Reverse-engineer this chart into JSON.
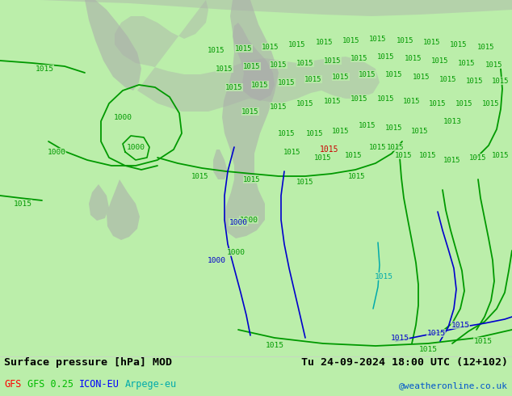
{
  "title_left": "Surface pressure [hPa] MOD",
  "title_right": "Tu 24-09-2024 18:00 UTC (12+102)",
  "legend_items": [
    {
      "label": "GFS",
      "color": "#ff0000"
    },
    {
      "label": "GFS 0.25",
      "color": "#00bb00"
    },
    {
      "label": "ICON-EU",
      "color": "#0000ff"
    },
    {
      "label": "Arpege-eu",
      "color": "#00aaaa"
    }
  ],
  "credit": "@weatheronline.co.uk",
  "land_color": "#bbeeaa",
  "bottom_bar_color": "#ffffff",
  "text_color": "#000000",
  "figsize": [
    6.34,
    4.9
  ],
  "dpi": 100,
  "green": "#009900",
  "blue": "#0000cc",
  "red": "#cc0000",
  "cyan": "#00aaaa",
  "gray": "#aaaaaa"
}
